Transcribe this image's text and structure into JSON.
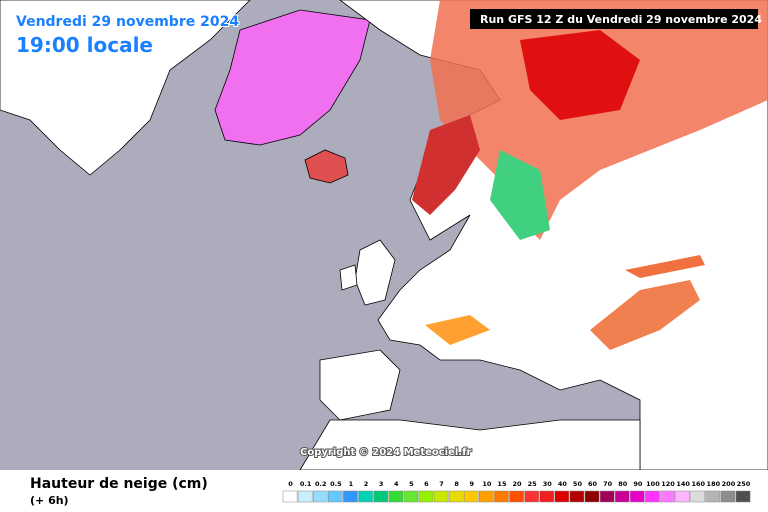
{
  "header": {
    "date": "Vendredi 29 novembre 2024",
    "time": "19:00 locale",
    "run": "Run GFS 12 Z du Vendredi 29 novembre 2024",
    "copyright": "Copyright © 2024 Meteociel.fr"
  },
  "legend": {
    "title": "Hauteur de neige (cm)",
    "subtitle": "(+ 6h)",
    "levels": [
      {
        "label": "0",
        "color": "#ffffff"
      },
      {
        "label": "0.1",
        "color": "#c8f0ff"
      },
      {
        "label": "0.2",
        "color": "#96dcff"
      },
      {
        "label": "0.5",
        "color": "#64c8ff"
      },
      {
        "label": "1",
        "color": "#3296ff"
      },
      {
        "label": "2",
        "color": "#00d2b4"
      },
      {
        "label": "3",
        "color": "#00c878"
      },
      {
        "label": "4",
        "color": "#32dc32"
      },
      {
        "label": "5",
        "color": "#64e632"
      },
      {
        "label": "6",
        "color": "#96f000"
      },
      {
        "label": "7",
        "color": "#c8e600"
      },
      {
        "label": "8",
        "color": "#e6dc00"
      },
      {
        "label": "9",
        "color": "#ffc800"
      },
      {
        "label": "10",
        "color": "#ffa000"
      },
      {
        "label": "15",
        "color": "#ff7800"
      },
      {
        "label": "20",
        "color": "#ff5000"
      },
      {
        "label": "25",
        "color": "#ff3232"
      },
      {
        "label": "30",
        "color": "#f01e1e"
      },
      {
        "label": "40",
        "color": "#dc0000"
      },
      {
        "label": "50",
        "color": "#b40000"
      },
      {
        "label": "60",
        "color": "#8c0000"
      },
      {
        "label": "70",
        "color": "#a0005a"
      },
      {
        "label": "80",
        "color": "#c80096"
      },
      {
        "label": "90",
        "color": "#e600c8"
      },
      {
        "label": "100",
        "color": "#ff32ff"
      },
      {
        "label": "120",
        "color": "#ff78ff"
      },
      {
        "label": "140",
        "color": "#ffb4ff"
      },
      {
        "label": "160",
        "color": "#dcdcdc"
      },
      {
        "label": "180",
        "color": "#b4b4b4"
      },
      {
        "label": "200",
        "color": "#8c8c8c"
      },
      {
        "label": "250",
        "color": "#505050"
      }
    ]
  }
}
